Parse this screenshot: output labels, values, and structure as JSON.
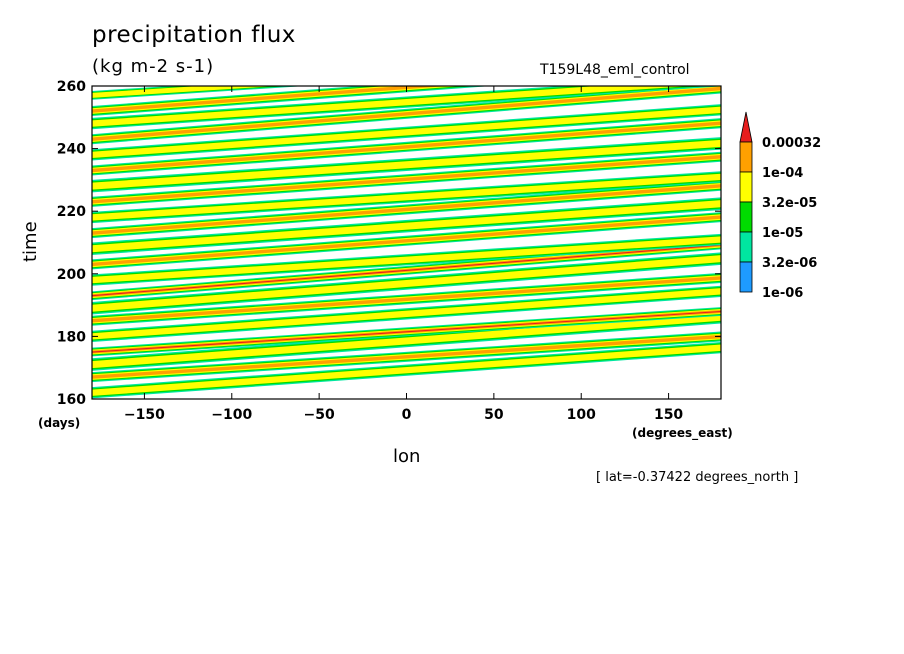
{
  "chart_data": {
    "type": "heatmap",
    "title": "precipitation flux",
    "units": "(kg m-2 s-1)",
    "run_label": "T159L48_eml_control",
    "xlabel": "lon",
    "x_units": "(degrees_east)",
    "ylabel": "time",
    "y_units": "(days)",
    "annotation": "[ lat=-0.37422 degrees_north ]",
    "xlim": [
      -180,
      180
    ],
    "ylim": [
      160,
      260
    ],
    "x_ticks": [
      -150,
      -100,
      -50,
      0,
      50,
      100,
      150
    ],
    "y_ticks": [
      160,
      180,
      200,
      220,
      240,
      260
    ],
    "colorbar": {
      "levels": [
        "1e-06",
        "3.2e-06",
        "1e-05",
        "3.2e-05",
        "1e-04",
        "0.00032"
      ],
      "colors": [
        "#1e9bff",
        "#00e6a0",
        "#00dc00",
        "#ffff00",
        "#ffa000",
        "#e61e1e"
      ],
      "extend": "max"
    },
    "bands": [
      {
        "x0": -180,
        "t0": 162,
        "slope": 0.04,
        "w": 1.8,
        "level": 3
      },
      {
        "x0": -180,
        "t0": 167,
        "slope": 0.036,
        "w": 1.6,
        "level": 4
      },
      {
        "x0": -180,
        "t0": 171,
        "slope": 0.042,
        "w": 2.0,
        "level": 3
      },
      {
        "x0": -180,
        "t0": 175,
        "slope": 0.036,
        "w": 1.4,
        "level": 5
      },
      {
        "x0": -180,
        "t0": 180,
        "slope": 0.04,
        "w": 1.8,
        "level": 3
      },
      {
        "x0": -180,
        "t0": 185,
        "slope": 0.038,
        "w": 1.6,
        "level": 4
      },
      {
        "x0": -180,
        "t0": 189,
        "slope": 0.044,
        "w": 2.0,
        "level": 3
      },
      {
        "x0": -180,
        "t0": 193,
        "slope": 0.045,
        "w": 1.4,
        "level": 5
      },
      {
        "x0": -180,
        "t0": 198,
        "slope": 0.036,
        "w": 1.8,
        "level": 3
      },
      {
        "x0": -180,
        "t0": 203,
        "slope": 0.042,
        "w": 1.6,
        "level": 4
      },
      {
        "x0": -180,
        "t0": 208,
        "slope": 0.04,
        "w": 2.0,
        "level": 3
      },
      {
        "x0": -180,
        "t0": 213,
        "slope": 0.042,
        "w": 1.6,
        "level": 4
      },
      {
        "x0": -180,
        "t0": 218,
        "slope": 0.036,
        "w": 1.8,
        "level": 3
      },
      {
        "x0": -180,
        "t0": 223,
        "slope": 0.04,
        "w": 1.6,
        "level": 4
      },
      {
        "x0": -180,
        "t0": 228,
        "slope": 0.038,
        "w": 2.0,
        "level": 3
      },
      {
        "x0": -180,
        "t0": 233,
        "slope": 0.042,
        "w": 1.6,
        "level": 4
      },
      {
        "x0": -180,
        "t0": 238,
        "slope": 0.04,
        "w": 1.8,
        "level": 3
      },
      {
        "x0": -180,
        "t0": 243,
        "slope": 0.045,
        "w": 1.6,
        "level": 4
      },
      {
        "x0": -180,
        "t0": 248,
        "slope": 0.038,
        "w": 1.8,
        "level": 3
      },
      {
        "x0": -180,
        "t0": 252,
        "slope": 0.042,
        "w": 1.6,
        "level": 4
      },
      {
        "x0": -180,
        "t0": 257,
        "slope": 0.036,
        "w": 1.4,
        "level": 3
      }
    ]
  }
}
